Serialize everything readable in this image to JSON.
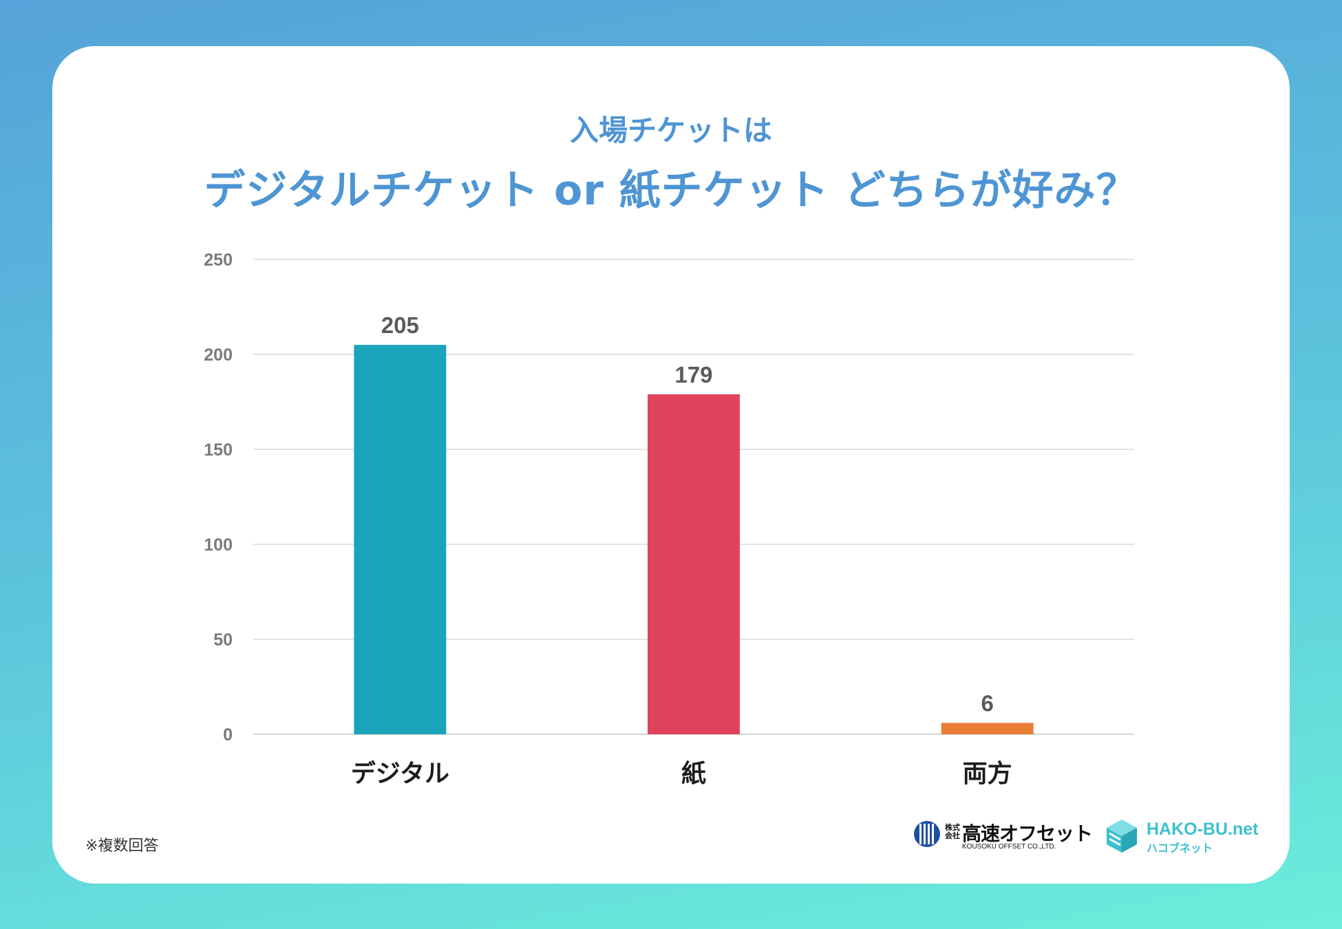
{
  "subtitle": "入場チケットは",
  "title": "デジタルチケット or 紙チケット どちらが好み？",
  "note": "※複数回答",
  "colors": {
    "grid": "#e3e3e3",
    "title": "#4e95d4"
  },
  "chart_data": {
    "type": "bar",
    "title": "デジタルチケット or 紙チケット どちらが好み？",
    "categories": [
      "デジタル",
      "紙",
      "両方"
    ],
    "values": [
      205,
      179,
      6
    ],
    "colors": [
      "#19a4bb",
      "#e0445c",
      "#e97e37"
    ],
    "ylim": [
      0,
      250
    ],
    "yticks": [
      0,
      50,
      100,
      150,
      200,
      250
    ],
    "xlabel": "",
    "ylabel": "",
    "grid": true,
    "legend": "none"
  },
  "logos": {
    "kousoku": {
      "prefix": "株式会社",
      "name": "高速オフセット",
      "english": "KOUSOKU OFFSET CO.,LTD.",
      "icon": "kousoku-mark-icon"
    },
    "hako": {
      "name": "HAKO-BU.net",
      "kana": "ハコブネット",
      "icon": "hako-cube-icon"
    }
  }
}
